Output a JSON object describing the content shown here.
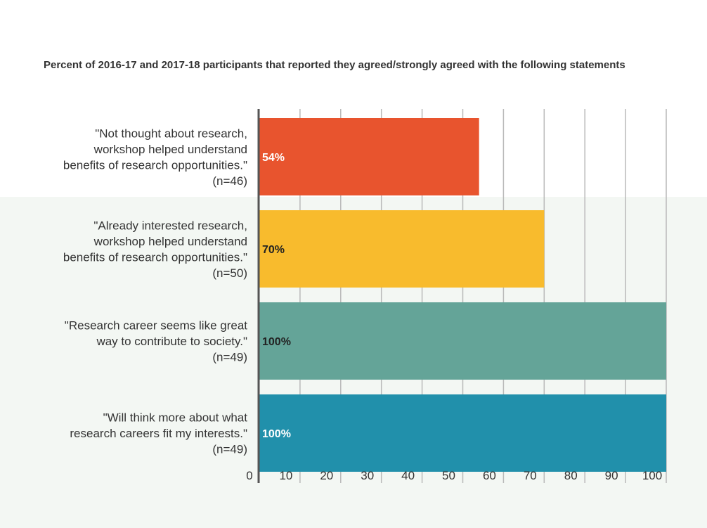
{
  "colors": {
    "band": "#f3f7f3",
    "grid": "#b9b9b9",
    "axis": "#555555",
    "text": "#333333"
  },
  "chart_data": {
    "type": "bar",
    "orientation": "horizontal",
    "title": "Percent of 2016-17 and 2017-18 participants that reported they agreed/strongly agreed with the following statements",
    "xlim": [
      0,
      100
    ],
    "ticks": [
      0,
      10,
      20,
      30,
      40,
      50,
      60,
      70,
      80,
      90,
      100
    ],
    "grid": true,
    "categories": [
      [
        "\"Not thought about research,",
        "workshop helped understand",
        "benefits of research opportunities.\"",
        "(n=46)"
      ],
      [
        "\"Already interested research,",
        "workshop helped understand",
        "benefits of research opportunities.\"",
        "(n=50)"
      ],
      [
        "\"Research career seems like great",
        "way to contribute to society.\"",
        "(n=49)"
      ],
      [
        "\"Will think more about what",
        "research careers fit my interests.\"",
        "(n=49)"
      ]
    ],
    "values": [
      54,
      70,
      100,
      100
    ],
    "value_labels": [
      "54%",
      "70%",
      "100%",
      "100%"
    ],
    "bar_colors": [
      "#e8542e",
      "#f8bb2d",
      "#64a498",
      "#2190ab"
    ],
    "label_colors": [
      "#ffffff",
      "#222222",
      "#222222",
      "#ffffff"
    ]
  }
}
